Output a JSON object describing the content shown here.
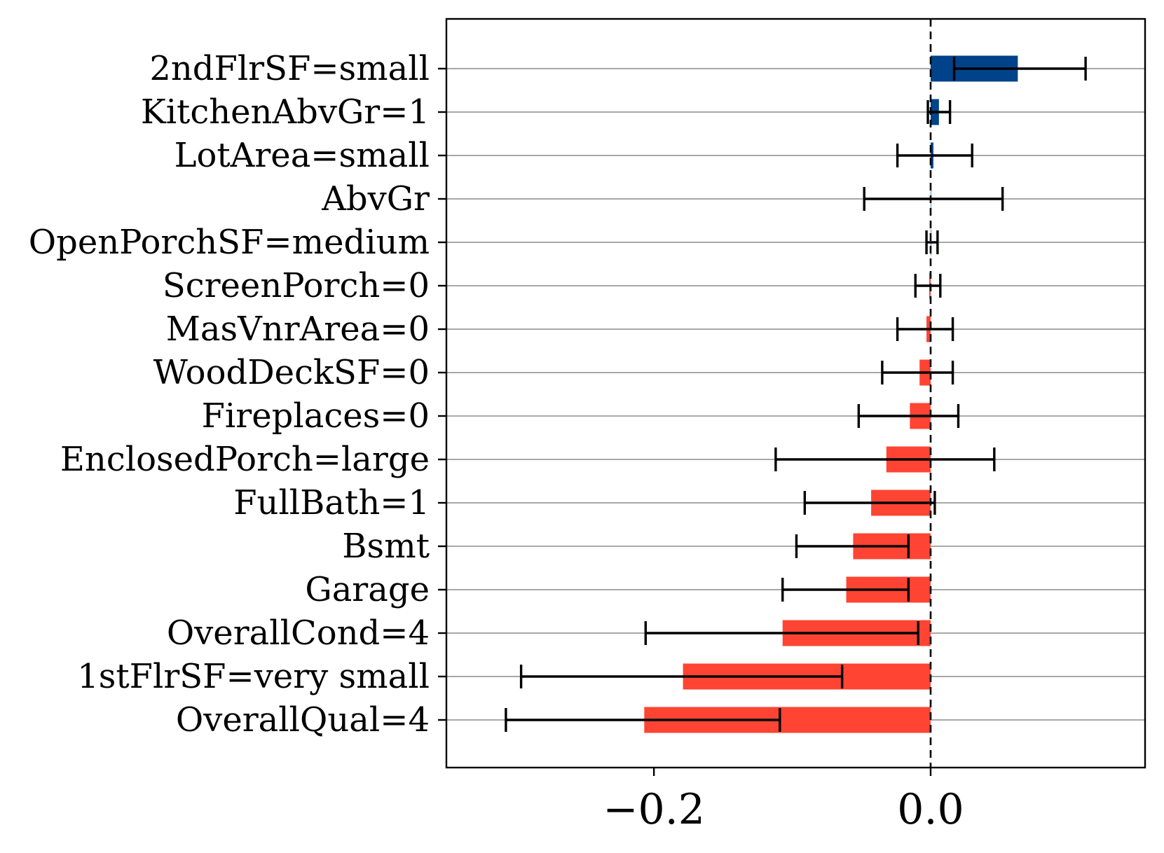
{
  "chart_data": {
    "type": "bar",
    "orientation": "horizontal",
    "title": "",
    "xlabel": "",
    "ylabel": "",
    "xlim": [
      -0.35,
      0.155
    ],
    "grid": "horizontal",
    "reference_line": {
      "x": 0.0,
      "style": "dashed"
    },
    "colors": {
      "positive": "#00438a",
      "negative": "#ff4433",
      "error_bar": "#000000",
      "grid": "#8c8c8c"
    },
    "x_ticks": [
      {
        "value": -0.2,
        "label": "−0.2"
      },
      {
        "value": 0.0,
        "label": "0.0"
      }
    ],
    "categories": [
      "2ndFlrSF=small",
      "KitchenAbvGr=1",
      "LotArea=small",
      "AbvGr",
      "OpenPorchSF=medium",
      "ScreenPorch=0",
      "MasVnrArea=0",
      "WoodDeckSF=0",
      "Fireplaces=0",
      "EnclosedPorch=large",
      "FullBath=1",
      "Bsmt",
      "Garage",
      "OverallCond=4",
      "1stFlrSF=very small",
      "OverallQual=4"
    ],
    "values": [
      0.063,
      0.006,
      0.002,
      0.0,
      0.0,
      -0.001,
      -0.003,
      -0.008,
      -0.015,
      -0.032,
      -0.043,
      -0.056,
      -0.061,
      -0.107,
      -0.179,
      -0.207
    ],
    "err_low": [
      0.017,
      -0.002,
      -0.024,
      -0.048,
      -0.003,
      -0.011,
      -0.024,
      -0.035,
      -0.052,
      -0.112,
      -0.091,
      -0.097,
      -0.107,
      -0.206,
      -0.296,
      -0.307
    ],
    "err_high": [
      0.112,
      0.014,
      0.03,
      0.052,
      0.005,
      0.007,
      0.016,
      0.016,
      0.02,
      0.046,
      0.003,
      -0.016,
      -0.016,
      -0.009,
      -0.064,
      -0.109
    ]
  }
}
